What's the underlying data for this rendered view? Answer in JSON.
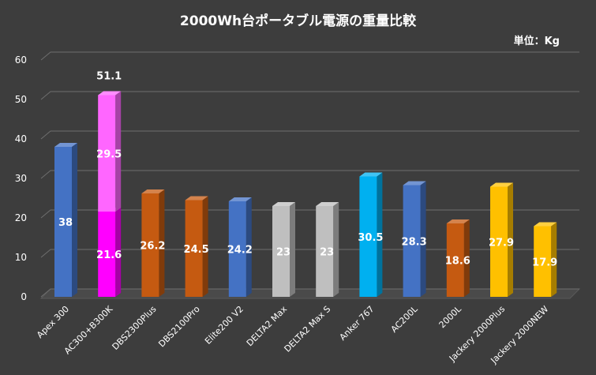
{
  "chart_data": {
    "type": "bar",
    "title": "2000Wh台ポータブル電源の重量比較",
    "unit_label": "単位：Kg",
    "ylim": [
      0,
      60
    ],
    "yticks": [
      "0",
      "10",
      "20",
      "30",
      "40",
      "50",
      "60"
    ],
    "grid": true,
    "categories": [
      "Apex 300",
      "AC300+B300K",
      "DBS2300Plus",
      "DBS2100Pro",
      "Elite200 V2",
      "DELTA2 Max",
      "DELTA2 Max S",
      "Anker 767",
      "AC200L",
      "2000L",
      "Jackery 2000Plus",
      "Jackery 2000NEW"
    ],
    "values": [
      38,
      21.6,
      26.2,
      24.5,
      24.2,
      23,
      23,
      30.5,
      28.3,
      18.6,
      27.9,
      17.9
    ],
    "value_labels": [
      "38",
      "21.6",
      "26.2",
      "24.5",
      "24.2",
      "23",
      "23",
      "30.5",
      "28.3",
      "18.6",
      "27.9",
      "17.9"
    ],
    "stacked_segment": {
      "category_index": 1,
      "value": 29.5,
      "label": "29.5",
      "color": "#ff66ff"
    },
    "total_labels": [
      {
        "category_index": 1,
        "value": 51.1,
        "label": "51.1"
      }
    ],
    "colors": [
      "#4472c4",
      "#ff00ff",
      "#c55a11",
      "#c55a11",
      "#4472c4",
      "#bfbfbf",
      "#bfbfbf",
      "#00b0f0",
      "#4472c4",
      "#c55a11",
      "#ffc000",
      "#ffc000"
    ]
  }
}
